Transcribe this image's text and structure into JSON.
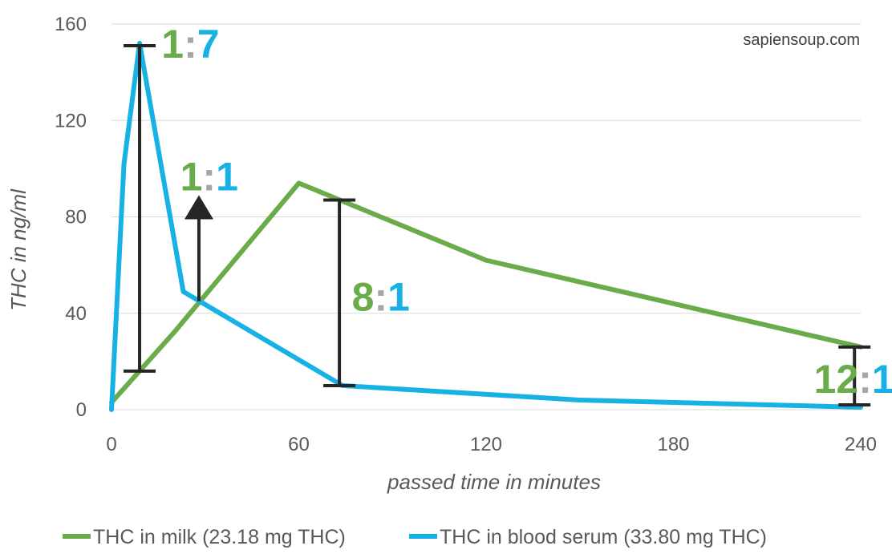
{
  "chart_data": {
    "type": "line",
    "title": "",
    "watermark": "sapiensoup.com",
    "xlabel": "passed time in minutes",
    "ylabel": "THC in ng/ml",
    "xlim": [
      0,
      240
    ],
    "ylim": [
      0,
      160
    ],
    "xticks": [
      0,
      60,
      120,
      180,
      240
    ],
    "yticks": [
      0,
      40,
      80,
      120,
      160
    ],
    "grid": true,
    "legend_position": "bottom",
    "colors": {
      "milk": "#6aab4a",
      "serum": "#17b1e6",
      "bracket": "#262626",
      "colon": "#a6a6a6"
    },
    "series": [
      {
        "name": "THC in milk (23.18 mg THC)",
        "key": "milk",
        "x": [
          0,
          20,
          60,
          120,
          240
        ],
        "y": [
          3,
          32,
          94,
          62,
          26
        ]
      },
      {
        "name": "THC in blood serum (33.80 mg THC)",
        "key": "serum",
        "x": [
          0,
          4,
          9,
          23,
          74,
          150,
          240
        ],
        "y": [
          0,
          102,
          152,
          49,
          10,
          4,
          1
        ]
      }
    ],
    "annotations": [
      {
        "type": "bracket",
        "x": 9,
        "y_low": 16,
        "y_high": 151,
        "label_left": "1",
        "label_right": "7",
        "label_x": 16,
        "label_y": 152
      },
      {
        "type": "arrow",
        "x": 28,
        "y_from": 45,
        "y_to": 89,
        "label_left": "1",
        "label_right": "1",
        "label_x": 22,
        "label_y": 97
      },
      {
        "type": "bracket",
        "x": 73,
        "y_low": 10,
        "y_high": 87,
        "label_left": "8",
        "label_right": "1",
        "label_x": 77,
        "label_y": 47
      },
      {
        "type": "bracket",
        "x": 238,
        "y_low": 2,
        "y_high": 26,
        "label_left": "12",
        "label_right": "1",
        "label_x": 225,
        "label_y": 13
      }
    ],
    "ratio_separator": ":"
  }
}
